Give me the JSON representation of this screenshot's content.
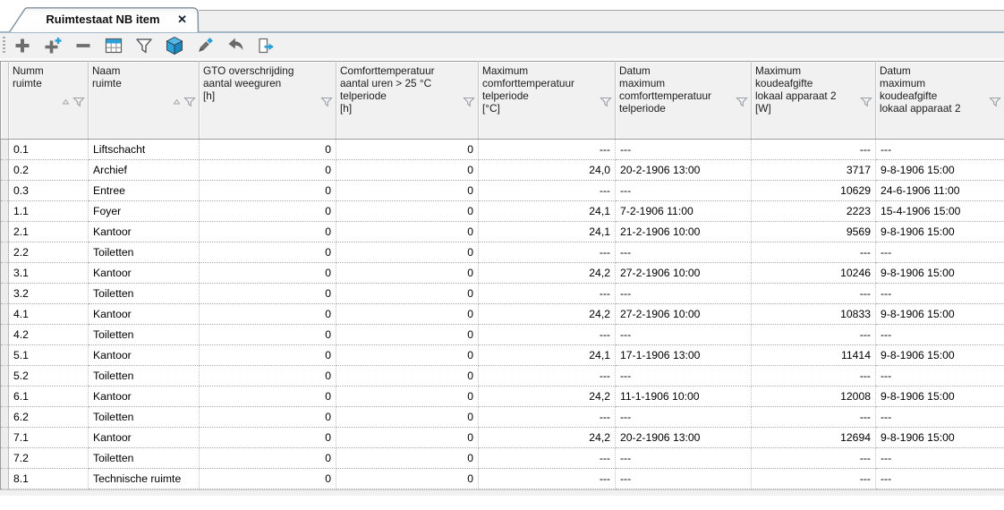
{
  "tab": {
    "title": "Ruimtestaat NB item",
    "close_glyph": "✕"
  },
  "toolbar": {
    "icons": [
      "add-icon",
      "add-multiple-icon",
      "remove-icon",
      "table-grid-icon",
      "filter-icon",
      "cube-3d-icon",
      "edit-pencil-icon",
      "undo-icon",
      "export-icon"
    ]
  },
  "colors": {
    "accent_blue": "#2b9fd8",
    "icon_gray": "#6e6e6e",
    "tabstrip_line": "#a3b7c7",
    "header_bg": "#f1f1f1"
  },
  "table": {
    "columns": [
      {
        "key": "numm-ruimte",
        "label": "Numm\nruimte",
        "align": "left",
        "sort_indicator": true,
        "filter": true
      },
      {
        "key": "naam-ruimte",
        "label": "Naam\nruimte",
        "align": "left",
        "sort_indicator": true,
        "filter": true
      },
      {
        "key": "gto-overschrijding",
        "label": "GTO overschrijding\naantal weeguren\n[h]",
        "align": "right",
        "sort_indicator": false,
        "filter": true
      },
      {
        "key": "comfort-uren",
        "label": "Comforttemperatuur\naantal uren > 25 °C\ntelperiode\n[h]",
        "align": "right",
        "sort_indicator": false,
        "filter": true
      },
      {
        "key": "max-comforttemperatuur",
        "label": "Maximum\ncomforttemperatuur\ntelperiode\n[°C]",
        "align": "right",
        "sort_indicator": false,
        "filter": true
      },
      {
        "key": "datum-max-comforttemperatuur",
        "label": "Datum\nmaximum\ncomforttemperatuur\ntelperiode",
        "align": "left",
        "sort_indicator": false,
        "filter": true
      },
      {
        "key": "max-koudeafgifte",
        "label": "Maximum\nkoudeafgifte\nlokaal apparaat 2\n[W]",
        "align": "right",
        "sort_indicator": false,
        "filter": true
      },
      {
        "key": "datum-max-koudeafgifte",
        "label": "Datum\nmaximum\nkoudeafgifte\nlokaal apparaat 2",
        "align": "left",
        "sort_indicator": false,
        "filter": true
      }
    ],
    "rows": [
      [
        "0.1",
        "Liftschacht",
        "0",
        "0",
        "---",
        "---",
        "---",
        "---"
      ],
      [
        "0.2",
        "Archief",
        "0",
        "0",
        "24,0",
        "20-2-1906 13:00",
        "3717",
        "9-8-1906 15:00"
      ],
      [
        "0.3",
        "Entree",
        "0",
        "0",
        "---",
        "---",
        "10629",
        "24-6-1906 11:00"
      ],
      [
        "1.1",
        "Foyer",
        "0",
        "0",
        "24,1",
        "7-2-1906 11:00",
        "2223",
        "15-4-1906 15:00"
      ],
      [
        "2.1",
        "Kantoor",
        "0",
        "0",
        "24,1",
        "21-2-1906 10:00",
        "9569",
        "9-8-1906 15:00"
      ],
      [
        "2.2",
        "Toiletten",
        "0",
        "0",
        "---",
        "---",
        "---",
        "---"
      ],
      [
        "3.1",
        "Kantoor",
        "0",
        "0",
        "24,2",
        "27-2-1906 10:00",
        "10246",
        "9-8-1906 15:00"
      ],
      [
        "3.2",
        "Toiletten",
        "0",
        "0",
        "---",
        "---",
        "---",
        "---"
      ],
      [
        "4.1",
        "Kantoor",
        "0",
        "0",
        "24,2",
        "27-2-1906 10:00",
        "10833",
        "9-8-1906 15:00"
      ],
      [
        "4.2",
        "Toiletten",
        "0",
        "0",
        "---",
        "---",
        "---",
        "---"
      ],
      [
        "5.1",
        "Kantoor",
        "0",
        "0",
        "24,1",
        "17-1-1906 13:00",
        "11414",
        "9-8-1906 15:00"
      ],
      [
        "5.2",
        "Toiletten",
        "0",
        "0",
        "---",
        "---",
        "---",
        "---"
      ],
      [
        "6.1",
        "Kantoor",
        "0",
        "0",
        "24,2",
        "11-1-1906 10:00",
        "12008",
        "9-8-1906 15:00"
      ],
      [
        "6.2",
        "Toiletten",
        "0",
        "0",
        "---",
        "---",
        "---",
        "---"
      ],
      [
        "7.1",
        "Kantoor",
        "0",
        "0",
        "24,2",
        "20-2-1906 13:00",
        "12694",
        "9-8-1906 15:00"
      ],
      [
        "7.2",
        "Toiletten",
        "0",
        "0",
        "---",
        "---",
        "---",
        "---"
      ],
      [
        "8.1",
        "Technische ruimte",
        "0",
        "0",
        "---",
        "---",
        "---",
        "---"
      ]
    ]
  }
}
